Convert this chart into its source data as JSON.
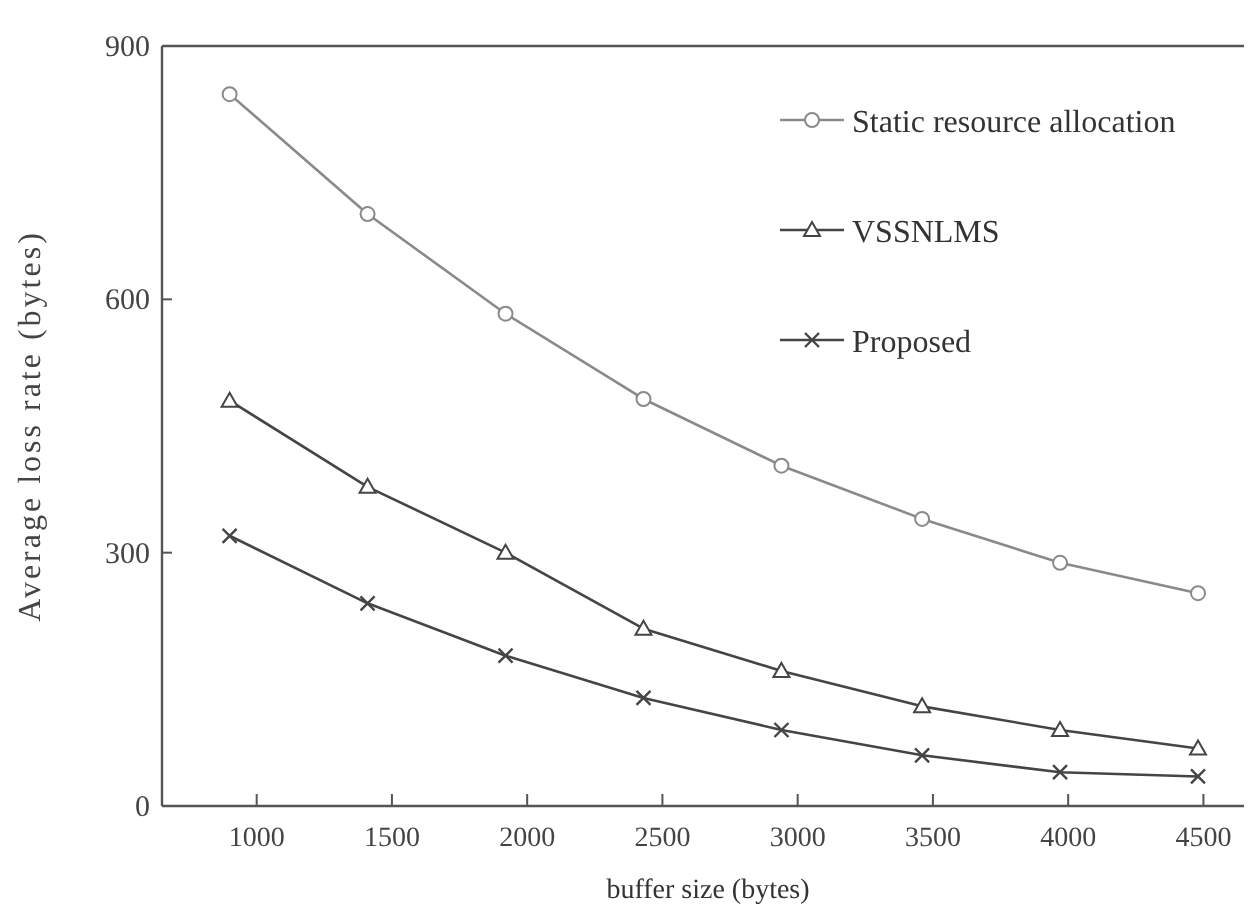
{
  "chart_data": {
    "type": "line",
    "xlabel": "buffer size (bytes)",
    "ylabel": "Average loss rate (bytes)",
    "xlim": [
      650,
      4650
    ],
    "ylim": [
      0,
      900
    ],
    "xticks": [
      1000,
      1500,
      2000,
      2500,
      3000,
      3500,
      4000,
      4500
    ],
    "yticks": [
      0,
      300,
      600,
      900
    ],
    "grid": false,
    "legend": "top right",
    "x": [
      900,
      1410,
      1920,
      2430,
      2940,
      3460,
      3970,
      4480
    ],
    "series": [
      {
        "name": "Static resource allocation",
        "color": "#8a8a8a",
        "marker": "circle",
        "values": [
          843,
          701,
          583,
          482,
          403,
          340,
          288,
          252
        ]
      },
      {
        "name": "VSSNLMS",
        "color": "#454545",
        "marker": "triangle",
        "values": [
          480,
          378,
          300,
          210,
          160,
          118,
          90,
          68
        ]
      },
      {
        "name": "Proposed",
        "color": "#454545",
        "marker": "cross",
        "values": [
          320,
          240,
          178,
          128,
          90,
          60,
          40,
          35
        ]
      }
    ]
  }
}
